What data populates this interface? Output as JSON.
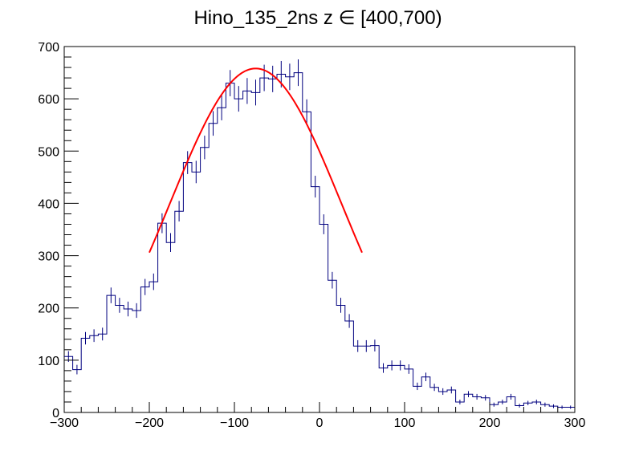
{
  "chart_data": {
    "type": "histogram",
    "title": "Hino_135_2ns z  ∈ [400,700)",
    "xlabel": "",
    "ylabel": "",
    "xlim": [
      -300,
      300
    ],
    "ylim": [
      0,
      700
    ],
    "x_ticks": [
      -300,
      -200,
      -100,
      0,
      100,
      200,
      300
    ],
    "x_tick_labels": [
      "−300",
      "−200",
      "−100",
      "0",
      "100",
      "200",
      "300"
    ],
    "y_ticks": [
      0,
      100,
      200,
      300,
      400,
      500,
      600,
      700
    ],
    "y_tick_labels": [
      "0",
      "100",
      "200",
      "300",
      "400",
      "500",
      "600",
      "700"
    ],
    "grid": false,
    "histogram": {
      "name": "data",
      "color": "#00007f",
      "bin_width": 10,
      "bin_low_edges": [
        -300,
        -290,
        -280,
        -270,
        -260,
        -250,
        -240,
        -230,
        -220,
        -210,
        -200,
        -190,
        -180,
        -170,
        -160,
        -150,
        -140,
        -130,
        -120,
        -110,
        -100,
        -90,
        -80,
        -70,
        -60,
        -50,
        -40,
        -30,
        -20,
        -10,
        0,
        10,
        20,
        30,
        40,
        50,
        60,
        70,
        80,
        90,
        100,
        110,
        120,
        130,
        140,
        150,
        160,
        170,
        180,
        190,
        200,
        210,
        220,
        230,
        240,
        250,
        260,
        270,
        280,
        290
      ],
      "values": [
        107,
        82,
        142,
        147,
        150,
        224,
        205,
        198,
        195,
        240,
        250,
        362,
        325,
        385,
        478,
        460,
        507,
        553,
        583,
        630,
        600,
        615,
        612,
        640,
        638,
        647,
        642,
        650,
        575,
        432,
        360,
        253,
        205,
        175,
        127,
        127,
        128,
        85,
        90,
        90,
        83,
        50,
        68,
        48,
        40,
        43,
        20,
        35,
        30,
        28,
        15,
        20,
        30,
        13,
        18,
        20,
        15,
        12,
        10,
        10
      ],
      "errors": [
        10.3,
        9.1,
        11.9,
        12.1,
        12.2,
        15,
        14.3,
        14.1,
        14,
        15.5,
        15.8,
        19,
        18,
        19.6,
        21.9,
        21.4,
        22.5,
        23.5,
        24.1,
        25.1,
        24.5,
        24.8,
        24.7,
        25.3,
        25.3,
        25.4,
        25.3,
        25.5,
        24,
        20.8,
        19,
        15.9,
        14.3,
        13.2,
        11.3,
        11.3,
        11.3,
        9.2,
        9.5,
        9.5,
        9.1,
        7.1,
        8.2,
        6.9,
        6.3,
        6.6,
        4.5,
        5.9,
        5.5,
        5.3,
        3.9,
        4.5,
        5.5,
        3.6,
        4.2,
        4.5,
        3.9,
        3.5,
        3.2,
        3.2
      ]
    },
    "fit": {
      "name": "gaussian fit",
      "color": "#ff0000",
      "x_range": [
        -200,
        50
      ],
      "constant": 658,
      "mean": -75,
      "sigma": 101
    }
  }
}
